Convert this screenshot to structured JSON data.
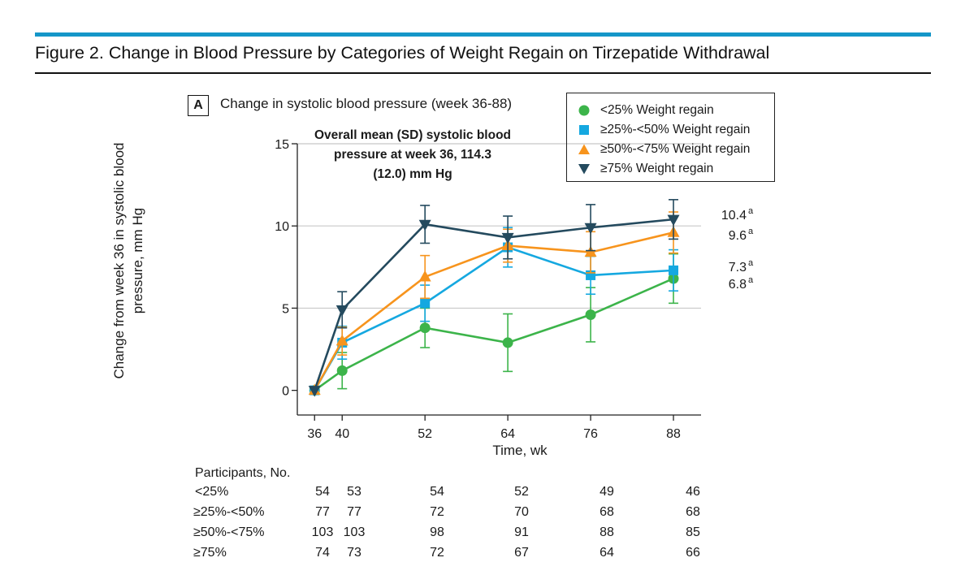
{
  "figure_title": "Figure 2. Change in Blood Pressure by Categories of Weight Regain on Tirzepatide Withdrawal",
  "panel": {
    "letter": "A",
    "title": "Change in systolic blood pressure (week 36-88)",
    "overall_line1": "Overall mean (SD) systolic blood",
    "overall_line2": "pressure at week 36, 114.3",
    "overall_line3": "(12.0) mm Hg"
  },
  "legend": [
    {
      "label": "<25% Weight regain",
      "marker": "circle",
      "color": "#3cb44a"
    },
    {
      "label": "≥25%-<50% Weight regain",
      "marker": "square",
      "color": "#15a8e0"
    },
    {
      "label": "≥50%-<75% Weight regain",
      "marker": "triangle-up",
      "color": "#f7941d"
    },
    {
      "label": "≥75% Weight regain",
      "marker": "triangle-down",
      "color": "#244a5e"
    }
  ],
  "chart_data": {
    "type": "line",
    "ylabel_line1": "Change from week 36 in systolic blood",
    "ylabel_line2": "pressure, mm Hg",
    "xlabel": "Time, wk",
    "x": [
      36,
      40,
      52,
      64,
      76,
      88
    ],
    "ylim": [
      -1.5,
      15
    ],
    "yticks": [
      0,
      5,
      10,
      15
    ],
    "gridlines": [
      5,
      10,
      15
    ],
    "series": [
      {
        "name": "<25% Weight regain",
        "marker": "circle",
        "color": "#3cb44a",
        "values": [
          0,
          1.2,
          3.8,
          2.9,
          4.6,
          6.8
        ],
        "err": [
          0,
          1.1,
          1.2,
          1.75,
          1.65,
          1.5
        ]
      },
      {
        "name": "≥25%-<50% Weight regain",
        "marker": "square",
        "color": "#15a8e0",
        "values": [
          0,
          2.9,
          5.3,
          8.7,
          7.0,
          7.3
        ],
        "err": [
          0,
          1.0,
          1.1,
          1.2,
          1.15,
          1.25
        ]
      },
      {
        "name": "≥50%-<75% Weight regain",
        "marker": "triangle-up",
        "color": "#f7941d",
        "values": [
          0,
          3.0,
          6.9,
          8.8,
          8.4,
          9.6
        ],
        "err": [
          0,
          0.85,
          1.3,
          1.0,
          1.25,
          1.25
        ]
      },
      {
        "name": "≥75% Weight regain",
        "marker": "triangle-down",
        "color": "#244a5e",
        "values": [
          0,
          4.9,
          10.1,
          9.3,
          9.9,
          10.4
        ],
        "err": [
          0,
          1.1,
          1.15,
          1.3,
          1.4,
          1.2
        ]
      }
    ],
    "end_labels": [
      {
        "value": "10.4",
        "sup": "a",
        "y": 10.4
      },
      {
        "value": "9.6",
        "sup": "a",
        "y": 9.6
      },
      {
        "value": "7.3",
        "sup": "a",
        "y": 7.3
      },
      {
        "value": "6.8",
        "sup": "a",
        "y": 6.8
      }
    ]
  },
  "participants": {
    "header": "Participants, No.",
    "rows": [
      {
        "label": "<25%",
        "values": [
          "54",
          "53",
          "54",
          "52",
          "49",
          "46"
        ]
      },
      {
        "label": "≥25%-<50%",
        "values": [
          "77",
          "77",
          "72",
          "70",
          "68",
          "68"
        ]
      },
      {
        "label": "≥50%-<75%",
        "values": [
          "103",
          "103",
          "98",
          "91",
          "88",
          "85"
        ]
      },
      {
        "label": "≥75%",
        "values": [
          "74",
          "73",
          "72",
          "67",
          "64",
          "66"
        ]
      }
    ]
  }
}
